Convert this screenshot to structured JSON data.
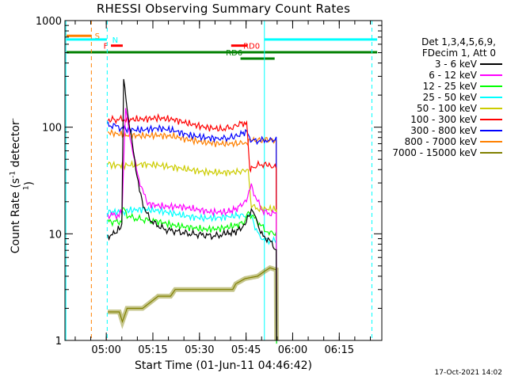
{
  "chart_data": {
    "type": "line",
    "title": "RHESSI Observing Summary Count Rates",
    "xlabel": "Start Time (01-Jun-11 04:46:42)",
    "ylabel": "Count Rate (s",
    "ylabel_sup": "-1",
    "ylabel_tail": " detector",
    "ylabel_tail_sup": "-1",
    "ylabel_end": ")",
    "ylog": true,
    "ylim": [
      1,
      1000
    ],
    "xlim_min": [
      0,
      102
    ],
    "x_tick_minutes": [
      13.3,
      28.3,
      43.3,
      58.3,
      73.3,
      88.3
    ],
    "x_tick_labels": [
      "05:00",
      "05:15",
      "05:30",
      "05:45",
      "06:00",
      "06:15"
    ],
    "y_tick_values": [
      1,
      10,
      100,
      1000
    ],
    "y_tick_labels": [
      "1",
      "10",
      "100",
      "1000"
    ],
    "legend_header": [
      "Det 1,3,4,5,6,9,",
      "FDecim 1, Att 0"
    ],
    "series": [
      {
        "name": "3 - 6 keV",
        "color": "#000000",
        "x": [
          13.8,
          16,
          18.3,
          18.9,
          20,
          22,
          24,
          26,
          28,
          32,
          36,
          40,
          44,
          48,
          52,
          55,
          58,
          60,
          61,
          62,
          63,
          65,
          67,
          68,
          68.1
        ],
        "y": [
          9.5,
          10,
          12,
          300,
          150,
          60,
          25,
          16,
          13,
          11,
          10.5,
          10,
          9.8,
          9.5,
          10,
          10.5,
          12,
          17,
          14,
          13,
          10,
          9,
          8,
          7,
          1
        ]
      },
      {
        "name": "6 - 12 keV",
        "color": "#ff00ff",
        "x": [
          13.8,
          17,
          18.3,
          18.6,
          19.5,
          21,
          23,
          25,
          27,
          32,
          37,
          42,
          47,
          52,
          55,
          58,
          60,
          62,
          64,
          66,
          68,
          68.1
        ],
        "y": [
          15,
          15,
          16,
          25,
          150,
          80,
          40,
          25,
          19,
          18,
          18,
          17,
          16,
          16,
          17,
          20,
          28,
          20,
          16,
          15.5,
          15.5,
          1
        ]
      },
      {
        "name": "12 - 25 keV",
        "color": "#00ff00",
        "x": [
          13.8,
          18.2,
          18.5,
          20,
          22,
          26,
          30,
          35,
          40,
          45,
          50,
          55,
          58,
          59,
          61,
          63,
          65,
          68,
          68.1
        ],
        "y": [
          13,
          13,
          18,
          15,
          14,
          13.5,
          13,
          12,
          11.5,
          11,
          11.2,
          12,
          13,
          16,
          14,
          12,
          10.5,
          10,
          1
        ]
      },
      {
        "name": "25 - 50 keV",
        "color": "#00ffff",
        "x": [
          13.8,
          18,
          20,
          25,
          30,
          35,
          40,
          45,
          50,
          55,
          58,
          59,
          60,
          62,
          63,
          64,
          66,
          68,
          68.1
        ],
        "y": [
          16,
          16,
          16.5,
          17,
          16.5,
          15.5,
          14.5,
          14,
          14.2,
          14.8,
          15,
          16,
          15,
          10,
          9,
          8.7,
          8.6,
          8.5,
          1
        ]
      },
      {
        "name": "50 - 100 keV",
        "color": "#cccc00",
        "x": [
          13.8,
          15,
          20,
          25,
          30,
          35,
          40,
          45,
          50,
          55,
          58,
          59,
          60,
          61,
          63,
          68,
          68.1
        ],
        "y": [
          45,
          44,
          44,
          45,
          44,
          42,
          40,
          38,
          37.5,
          38,
          39,
          40,
          18,
          17.5,
          17.2,
          17,
          1
        ]
      },
      {
        "name": "100 - 300 keV",
        "color": "#ff0000",
        "x": [
          13.8,
          16,
          20,
          25,
          30,
          35,
          40,
          45,
          50,
          54,
          57,
          58.5,
          59.5,
          60,
          61,
          63,
          65,
          68,
          68.1
        ],
        "y": [
          118,
          118,
          118,
          119,
          122,
          118,
          108,
          100,
          96,
          100,
          110,
          105,
          40,
          40,
          42,
          45,
          44,
          42,
          1
        ]
      },
      {
        "name": "300 - 800 keV",
        "color": "#0000ff",
        "x": [
          13.8,
          16,
          20,
          25,
          30,
          35,
          40,
          45,
          50,
          54,
          57,
          58.5,
          59.5,
          60,
          61,
          63,
          65,
          68,
          68.1
        ],
        "y": [
          105,
          102,
          95,
          94,
          98,
          93,
          84,
          80,
          78,
          80,
          87,
          92,
          75,
          74,
          74,
          75,
          76,
          76,
          1
        ]
      },
      {
        "name": "800 - 7000 keV",
        "color": "#ff8000",
        "x": [
          13.8,
          15,
          20,
          25,
          30,
          35,
          40,
          45,
          50,
          55,
          58,
          60,
          63,
          65,
          68,
          68.1
        ],
        "y": [
          92,
          88,
          84,
          83,
          84,
          82,
          76,
          72,
          70,
          70,
          72,
          75,
          76,
          76,
          75,
          1
        ]
      },
      {
        "name": "7000 - 15000 keV",
        "color": "#808000",
        "x": [
          13.8,
          17.5,
          18.5,
          20,
          25,
          28.5,
          30,
          34,
          35.5,
          40,
          45,
          50,
          54,
          55,
          58,
          60,
          62,
          64,
          66,
          68,
          68.1
        ],
        "y": [
          1.85,
          1.85,
          1.5,
          2,
          2,
          2.4,
          2.6,
          2.6,
          3,
          3,
          3,
          3,
          3,
          3.4,
          3.8,
          3.9,
          4,
          4.4,
          4.8,
          4.6,
          1
        ]
      }
    ],
    "flags": [
      {
        "name": "S",
        "color": "#ff8000",
        "x": [
          0.5,
          8.5
        ],
        "y": 720,
        "label_x": 9.6
      },
      {
        "name": "N",
        "color": "#00ffff",
        "x": [
          0.5,
          13.5
        ],
        "y": 665,
        "label_x": 15.2
      },
      {
        "name": "F",
        "color": "#ff0000",
        "x": [
          14.8,
          18.6
        ],
        "y": 582,
        "label_x": 12.4
      },
      {
        "name": "RD0",
        "color": "#ff0000",
        "x": [
          53.5,
          58.8
        ],
        "y": 582,
        "label_x": 57.4
      },
      {
        "name": "RD6",
        "color": "#008000",
        "x": [
          0.5,
          100.5
        ],
        "y": 505,
        "label_x": 51.8
      }
    ],
    "flag_segments": [
      {
        "color": "#00ffff",
        "x": [
          64.2,
          100.5
        ],
        "y": 665
      },
      {
        "color": "#008000",
        "x": [
          56.5,
          67.5
        ],
        "y": 440
      }
    ],
    "vlines": [
      {
        "color": "#ff8000",
        "x": 8.5,
        "dashed": true
      },
      {
        "color": "#00ffff",
        "x": 13.6,
        "dashed": true
      },
      {
        "color": "#00ffff",
        "x": 64.2,
        "dashed": false
      },
      {
        "color": "#00ffff",
        "x": 98.8,
        "dashed": true
      },
      {
        "color": "#00ffff",
        "x": 0.3,
        "dashed": false
      }
    ]
  },
  "footer": {
    "stamp": "17-Oct-2021 14:02"
  }
}
